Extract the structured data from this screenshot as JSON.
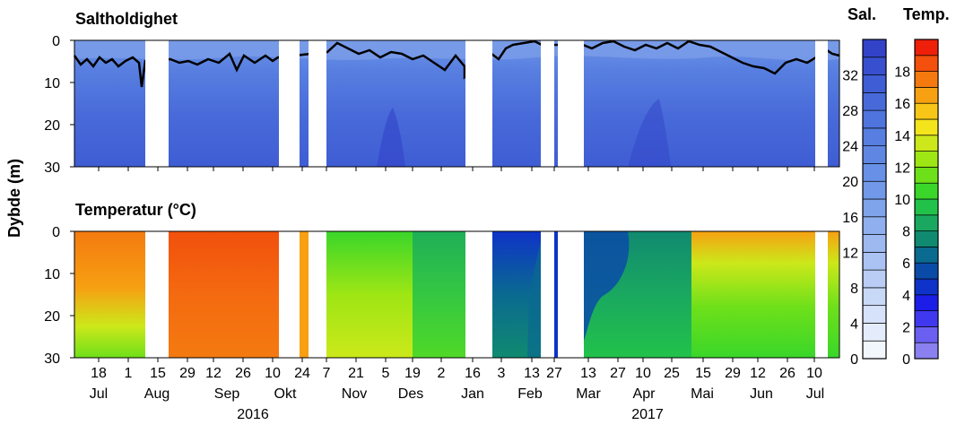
{
  "chart_data": [
    {
      "type": "heatmap",
      "title": "Saltholdighet",
      "ylabel": "Dybde (m)",
      "ylim": [
        30,
        0
      ],
      "y_ticks": [
        "0",
        "10",
        "20",
        "30"
      ],
      "x_day_ticks": [
        "18",
        "1",
        "15",
        "29",
        "12",
        "26",
        "10",
        "24",
        "7",
        "21",
        "5",
        "19",
        "2",
        "16",
        "3",
        "13",
        "27",
        "13",
        "27",
        "10",
        "25",
        "15",
        "29",
        "12",
        "26",
        "10"
      ],
      "x_month_labels": [
        "Jul",
        "Aug",
        "Sep",
        "Okt",
        "Nov",
        "Des",
        "Jan",
        "Feb",
        "Mar",
        "Apr",
        "Mai",
        "Jun",
        "Jul"
      ],
      "x_year_labels": [
        "2016",
        "2017"
      ],
      "colorbar": {
        "label": "Sal.",
        "ticks": [
          "0",
          "4",
          "8",
          "12",
          "16",
          "20",
          "24",
          "28",
          "32"
        ],
        "levels": [
          0,
          2,
          4,
          6,
          8,
          10,
          12,
          14,
          16,
          18,
          20,
          22,
          24,
          26,
          28,
          30,
          32,
          34
        ],
        "colors": [
          "#f2f6fd",
          "#e4ecfb",
          "#d6e2f9",
          "#c8d8f7",
          "#b9cdf5",
          "#abc3f2",
          "#9db9f0",
          "#8fafee",
          "#80a4ec",
          "#7299e8",
          "#6790e6",
          "#5f87e2",
          "#577ee0",
          "#4f74dd",
          "#486ad9",
          "#3f5dd4",
          "#3850cf",
          "#3243c8"
        ]
      },
      "contour_line": "halocline"
    },
    {
      "type": "heatmap",
      "title": "Temperatur (°C)",
      "ylabel": "Dybde (m)",
      "ylim": [
        30,
        0
      ],
      "y_ticks": [
        "0",
        "10",
        "20",
        "30"
      ],
      "colorbar": {
        "label": "Temp.",
        "ticks": [
          "0",
          "2",
          "4",
          "6",
          "8",
          "10",
          "12",
          "14",
          "16",
          "18"
        ],
        "levels": [
          0,
          1,
          2,
          3,
          4,
          5,
          6,
          7,
          8,
          9,
          10,
          11,
          12,
          13,
          14,
          15,
          16,
          17,
          18,
          19
        ],
        "colors": [
          "#8a80f0",
          "#6a5ff0",
          "#3f38ee",
          "#1c1ee8",
          "#0f33c8",
          "#0b4ba8",
          "#0a6a90",
          "#108a70",
          "#1aa860",
          "#22c24a",
          "#3ad62a",
          "#6ee01a",
          "#9ee614",
          "#cce81a",
          "#f4e41c",
          "#f8c616",
          "#f6a012",
          "#f47a10",
          "#f2500c",
          "#ee200a"
        ]
      }
    }
  ]
}
